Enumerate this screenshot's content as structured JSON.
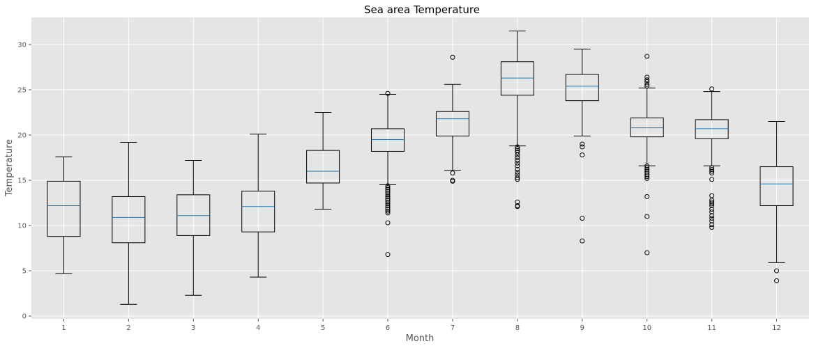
{
  "chart_data": {
    "type": "box",
    "title": "Sea area Temperature",
    "xlabel": "Month",
    "ylabel": "Temperature",
    "ylim": [
      -0.3,
      33
    ],
    "yticks": [
      0,
      5,
      10,
      15,
      20,
      25,
      30
    ],
    "grid": true,
    "style": "ggplot",
    "colors": {
      "background": "#e5e5e5",
      "grid": "#ffffff",
      "box": "#000000",
      "median": "#1f77b4"
    },
    "categories": [
      "1",
      "2",
      "3",
      "4",
      "5",
      "6",
      "7",
      "8",
      "9",
      "10",
      "11",
      "12"
    ],
    "boxes": [
      {
        "month": "1",
        "whislo": 4.7,
        "q1": 8.8,
        "med": 12.2,
        "q3": 14.9,
        "whishi": 17.6,
        "fliers": []
      },
      {
        "month": "2",
        "whislo": 1.3,
        "q1": 8.1,
        "med": 10.9,
        "q3": 13.2,
        "whishi": 19.2,
        "fliers": []
      },
      {
        "month": "3",
        "whislo": 2.3,
        "q1": 8.9,
        "med": 11.1,
        "q3": 13.4,
        "whishi": 17.2,
        "fliers": []
      },
      {
        "month": "4",
        "whislo": 4.3,
        "q1": 9.3,
        "med": 12.1,
        "q3": 13.8,
        "whishi": 20.1,
        "fliers": []
      },
      {
        "month": "5",
        "whislo": 11.8,
        "q1": 14.7,
        "med": 16.0,
        "q3": 18.3,
        "whishi": 22.5,
        "fliers": []
      },
      {
        "month": "6",
        "whislo": 14.5,
        "q1": 18.2,
        "med": 19.5,
        "q3": 20.7,
        "whishi": 24.5,
        "fliers": [
          24.6,
          14.4,
          14.2,
          14.0,
          13.8,
          13.6,
          13.4,
          13.2,
          13.0,
          12.8,
          12.6,
          12.4,
          12.2,
          12.0,
          11.8,
          11.6,
          11.4,
          10.3,
          6.8
        ]
      },
      {
        "month": "7",
        "whislo": 16.1,
        "q1": 19.9,
        "med": 21.8,
        "q3": 22.6,
        "whishi": 25.6,
        "fliers": [
          28.6,
          15.8,
          15.0,
          14.9
        ]
      },
      {
        "month": "8",
        "whislo": 18.8,
        "q1": 24.4,
        "med": 26.3,
        "q3": 28.1,
        "whishi": 31.5,
        "fliers": [
          18.7,
          18.5,
          18.3,
          18.1,
          17.8,
          17.5,
          17.2,
          16.9,
          16.6,
          16.2,
          15.9,
          15.6,
          15.3,
          15.1,
          12.6,
          12.2,
          12.1
        ]
      },
      {
        "month": "9",
        "whislo": 19.9,
        "q1": 23.8,
        "med": 25.4,
        "q3": 26.7,
        "whishi": 29.5,
        "fliers": [
          19.0,
          18.7,
          17.8,
          10.8,
          8.3
        ]
      },
      {
        "month": "10",
        "whislo": 16.6,
        "q1": 19.8,
        "med": 20.8,
        "q3": 21.9,
        "whishi": 25.2,
        "fliers": [
          28.7,
          26.4,
          26.1,
          25.9,
          25.6,
          25.4,
          16.6,
          16.4,
          16.2,
          16.0,
          15.8,
          15.6,
          15.4,
          15.2,
          13.2,
          11.0,
          7.0
        ]
      },
      {
        "month": "11",
        "whislo": 16.6,
        "q1": 19.6,
        "med": 20.7,
        "q3": 21.7,
        "whishi": 24.8,
        "fliers": [
          25.1,
          16.4,
          16.2,
          16.0,
          15.8,
          15.1,
          13.3,
          12.8,
          12.6,
          12.4,
          12.2,
          11.8,
          11.5,
          11.1,
          10.8,
          10.5,
          10.1,
          9.8
        ]
      },
      {
        "month": "12",
        "whislo": 5.9,
        "q1": 12.2,
        "med": 14.6,
        "q3": 16.5,
        "whishi": 21.5,
        "fliers": [
          5.0,
          3.9
        ]
      }
    ]
  }
}
